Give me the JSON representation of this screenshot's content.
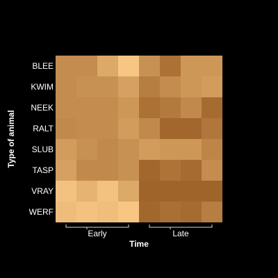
{
  "chart_data": {
    "type": "heatmap",
    "xlabel": "Time",
    "ylabel": "Type of animal",
    "rows": [
      "BLEE",
      "KWIM",
      "NEEK",
      "RALT",
      "SLUB",
      "TASP",
      "VRAY",
      "WERF"
    ],
    "column_groups": [
      {
        "label": "Early",
        "columns": 4
      },
      {
        "label": "Late",
        "columns": 4
      }
    ],
    "values": [
      [
        40,
        40,
        55,
        70,
        42,
        25,
        45,
        45
      ],
      [
        40,
        42,
        42,
        50,
        32,
        40,
        45,
        48
      ],
      [
        40,
        40,
        40,
        45,
        25,
        30,
        38,
        22
      ],
      [
        38,
        40,
        40,
        48,
        38,
        20,
        20,
        28
      ],
      [
        48,
        42,
        38,
        42,
        48,
        45,
        45,
        36
      ],
      [
        50,
        38,
        38,
        42,
        20,
        26,
        22,
        40
      ],
      [
        68,
        60,
        68,
        55,
        18,
        18,
        18,
        18
      ],
      [
        65,
        68,
        66,
        70,
        20,
        24,
        22,
        32
      ]
    ],
    "value_range": [
      15,
      75
    ],
    "colors": {
      "background": "#000000",
      "low": "#9a5e24",
      "high": "#ffcf8c"
    },
    "grid": false,
    "legend": "none"
  }
}
